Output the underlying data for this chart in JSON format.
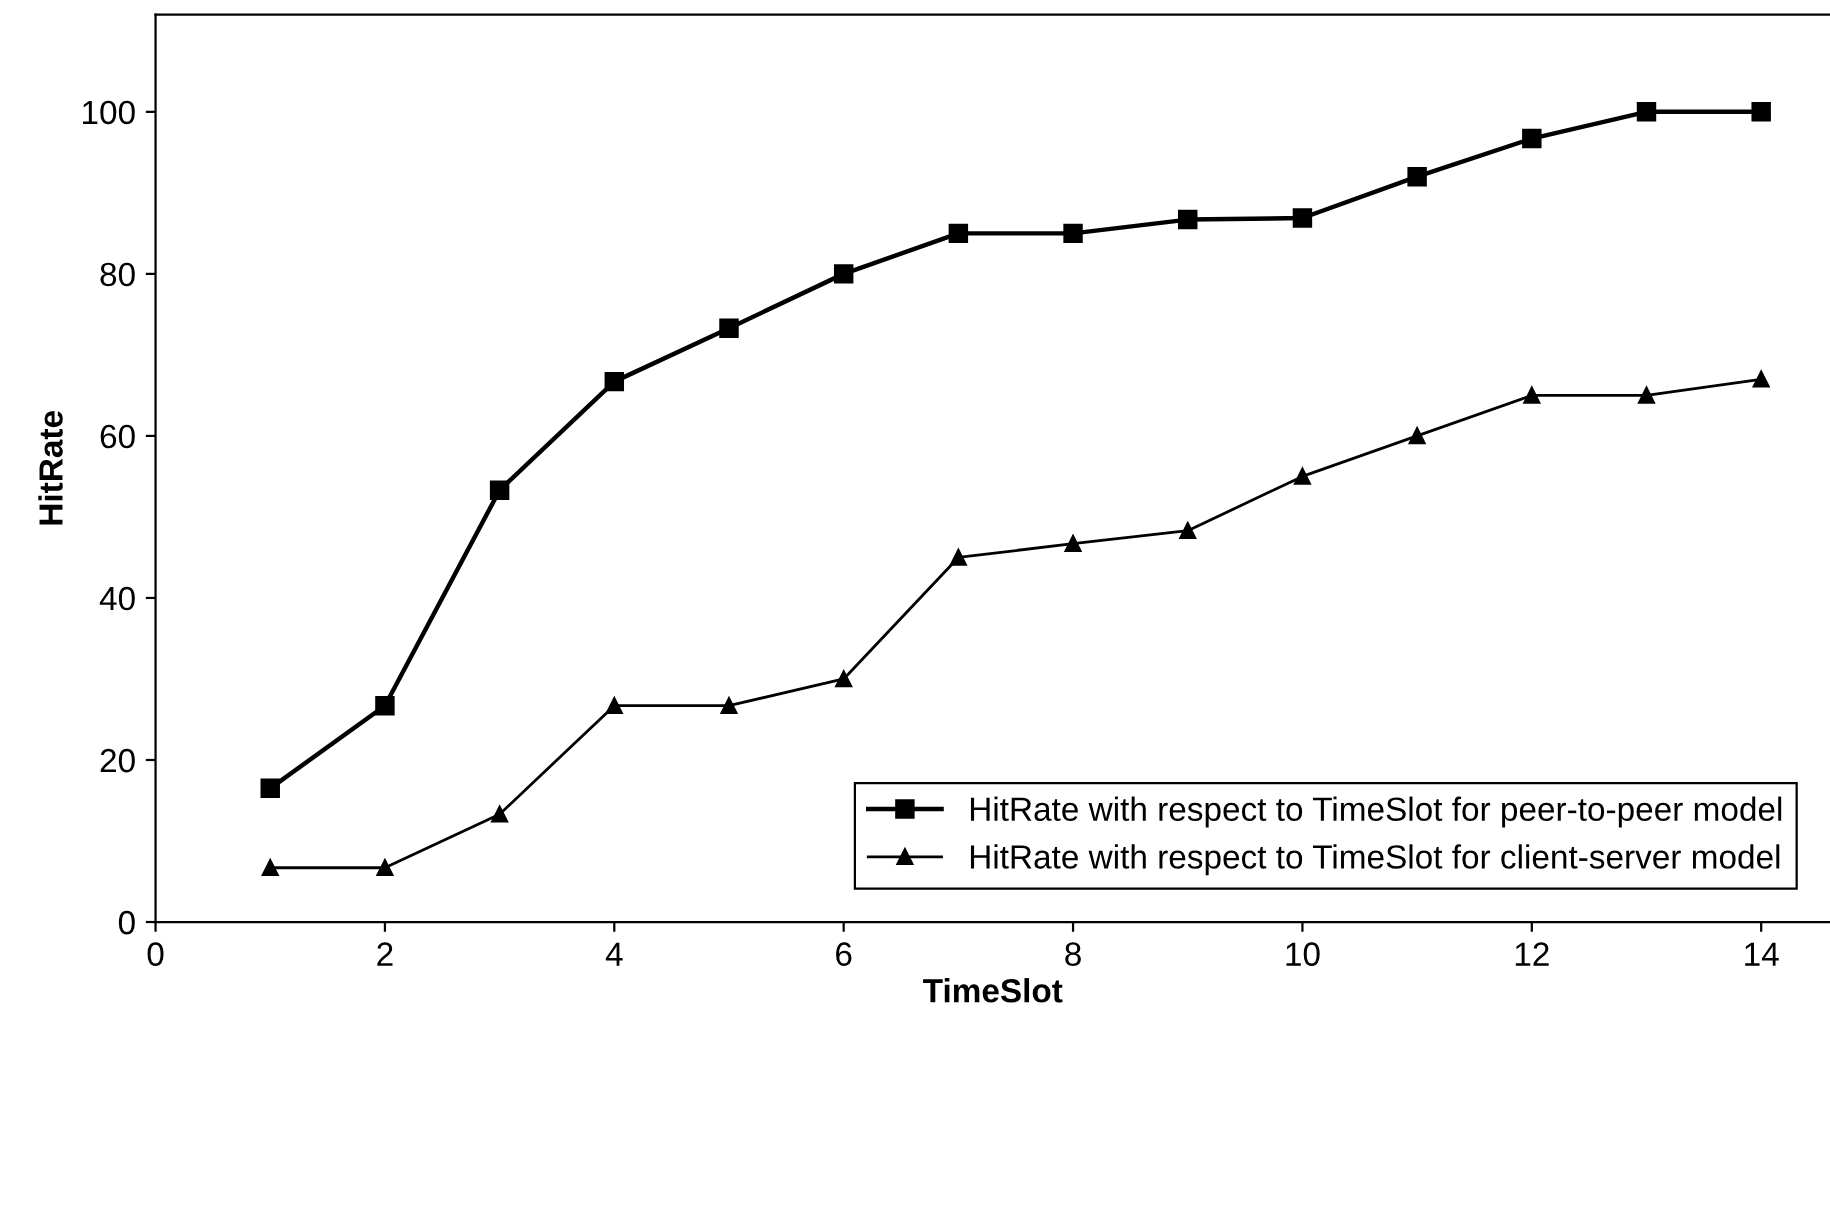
{
  "chart_data": {
    "type": "line",
    "xlabel": "TimeSlot",
    "ylabel": "HitRate",
    "x": [
      1,
      2,
      3,
      4,
      5,
      6,
      7,
      8,
      9,
      10,
      11,
      12,
      13,
      14
    ],
    "series": [
      {
        "name": "HitRate with respect to TimeSlot for peer-to-peer model",
        "color": "#000000",
        "marker": "square",
        "values": [
          16.5,
          26.7,
          53.3,
          66.7,
          73.3,
          80,
          85,
          85,
          86.7,
          86.9,
          92,
          96.7,
          100,
          100
        ]
      },
      {
        "name": "HitRate with respect to TimeSlot for client-server model",
        "color": "#000000",
        "marker": "triangle",
        "values": [
          6.7,
          6.7,
          13.3,
          26.7,
          26.7,
          30,
          45,
          46.7,
          48.3,
          55,
          60,
          65,
          65,
          67
        ]
      }
    ],
    "xlim": [
      0,
      14.6
    ],
    "xticks": [
      0,
      2,
      4,
      6,
      8,
      10,
      12,
      14
    ],
    "ylim": [
      0,
      112
    ],
    "yticks": [
      0,
      20,
      40,
      60,
      80,
      100
    ],
    "grid": false,
    "legend": "bottom right",
    "line_style": "solid"
  }
}
